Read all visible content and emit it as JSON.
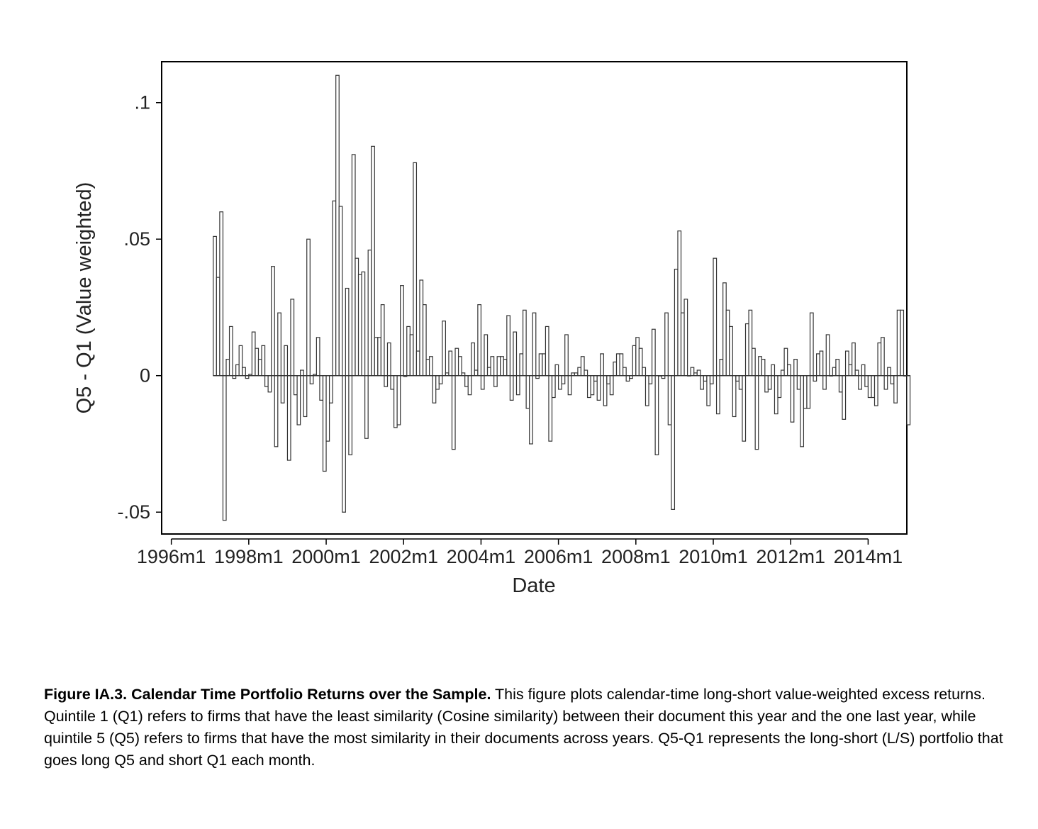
{
  "chart_data": {
    "type": "bar",
    "xlabel": "Date",
    "ylabel": "Q5 - Q1 (Value weighted)",
    "x_ticks": [
      "1996m1",
      "1998m1",
      "2000m1",
      "2002m1",
      "2004m1",
      "2006m1",
      "2008m1",
      "2010m1",
      "2012m1",
      "2014m1"
    ],
    "y_ticks": [
      ".1",
      ".05",
      "0",
      "-.05"
    ],
    "y_tick_values": [
      0.1,
      0.05,
      0,
      -0.05
    ],
    "ylim": [
      -0.058,
      0.115
    ],
    "xlim": [
      "1995m10",
      "2015m1"
    ],
    "start_month": "1997m2",
    "series": [
      {
        "values": [
          0.051,
          0.036,
          0.06,
          -0.053,
          0.006,
          0.018,
          -0.001,
          0.004,
          0.011,
          0.003,
          -0.001,
          0.0005,
          0.016,
          0.01,
          0.006,
          0.011,
          -0.004,
          -0.006,
          0.04,
          -0.026,
          0.023,
          -0.01,
          0.011,
          -0.031,
          0.028,
          -0.007,
          -0.018,
          0.002,
          -0.015,
          0.05,
          -0.003,
          0.0005,
          0.014,
          -0.009,
          -0.035,
          -0.024,
          -0.01,
          0.064,
          0.11,
          0.062,
          -0.05,
          0.032,
          -0.029,
          0.081,
          0.043,
          0.037,
          0.038,
          -0.023,
          0.046,
          0.084,
          0.014,
          0.014,
          0.026,
          -0.004,
          0.012,
          -0.005,
          -0.019,
          -0.018,
          0.033,
          -0.0003,
          0.018,
          0.015,
          0.078,
          0.009,
          0.035,
          0.026,
          0.006,
          0.007,
          -0.01,
          -0.005,
          -0.003,
          0.02,
          0.001,
          0.009,
          -0.027,
          0.01,
          0.007,
          0.001,
          -0.004,
          -0.007,
          0.012,
          0.002,
          0.026,
          -0.005,
          0.015,
          0.003,
          0.007,
          -0.004,
          0.007,
          0.007,
          0.006,
          0.022,
          -0.009,
          0.016,
          -0.007,
          0.008,
          0.024,
          -0.012,
          -0.025,
          0.023,
          -0.001,
          0.008,
          0.008,
          0.018,
          -0.024,
          -0.008,
          0.004,
          -0.005,
          -0.003,
          0.015,
          -0.007,
          0.001,
          0.001,
          0.003,
          0.007,
          0.002,
          -0.008,
          -0.007,
          -0.002,
          -0.009,
          0.008,
          -0.011,
          -0.003,
          -0.007,
          0.005,
          0.008,
          0.008,
          0.003,
          -0.002,
          -0.001,
          0.011,
          0.014,
          0.01,
          0.003,
          -0.011,
          -0.003,
          0.017,
          -0.029,
          0.0,
          -0.001,
          0.023,
          -0.018,
          -0.049,
          0.039,
          0.053,
          0.023,
          0.028,
          0.0,
          0.003,
          0.001,
          0.002,
          -0.005,
          -0.002,
          -0.011,
          -0.003,
          0.043,
          -0.014,
          0.006,
          0.034,
          0.024,
          0.018,
          -0.015,
          -0.002,
          -0.005,
          -0.024,
          0.019,
          0.024,
          0.01,
          -0.027,
          0.007,
          0.006,
          -0.006,
          -0.005,
          0.004,
          -0.014,
          -0.008,
          0.002,
          0.01,
          0.004,
          -0.017,
          0.006,
          -0.005,
          -0.026,
          -0.012,
          -0.012,
          0.023,
          -0.002,
          0.008,
          0.009,
          -0.005,
          0.015,
          0.0,
          0.003,
          0.006,
          -0.006,
          -0.016,
          0.009,
          0.004,
          0.012,
          0.002,
          -0.005,
          0.004,
          -0.004,
          -0.008,
          -0.008,
          -0.011,
          0.012,
          0.014,
          -0.005,
          0.003,
          -0.003,
          -0.01,
          0.024,
          0.024,
          0.0,
          -0.018
        ]
      }
    ]
  },
  "caption": {
    "label": "Figure IA.3",
    "separator": ".  ",
    "title": "Calendar Time Portfolio Returns over the Sample.",
    "text": " This figure plots calendar-time long-short value-weighted excess returns.  Quintile 1 (Q1) refers to firms that have the least similarity (Cosine similarity) between their document this year and the one last year, while quintile 5 (Q5) refers to firms that have the most similarity in their documents across years.  Q5-Q1 represents the long-short (L/S) portfolio that goes long Q5 and short Q1 each month."
  }
}
